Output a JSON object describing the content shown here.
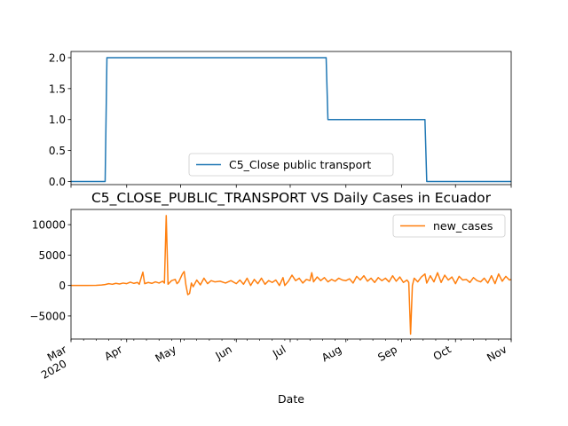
{
  "chart_data": [
    {
      "type": "line",
      "title": "",
      "xlabel": "",
      "ylabel": "",
      "ylim": [
        -0.05,
        2.1
      ],
      "yticks": [
        0.0,
        0.5,
        1.0,
        1.5,
        2.0
      ],
      "ytick_labels": [
        "0.0",
        "0.5",
        "1.0",
        "1.5",
        "2.0"
      ],
      "x_range": [
        "2020-03-01",
        "2020-11-01"
      ],
      "legend_position": "lower-center",
      "series": [
        {
          "name": "C5_Close public transport",
          "color": "#1f77b4",
          "step": true,
          "points": [
            [
              "2020-03-01",
              0
            ],
            [
              "2020-03-20",
              0
            ],
            [
              "2020-03-21",
              2
            ],
            [
              "2020-07-21",
              2
            ],
            [
              "2020-07-22",
              1
            ],
            [
              "2020-09-14",
              1
            ],
            [
              "2020-09-15",
              0
            ],
            [
              "2020-11-01",
              0
            ]
          ]
        }
      ]
    },
    {
      "type": "line",
      "title": "C5_CLOSE_PUBLIC_TRANSPORT VS Daily Cases in Ecuador",
      "xlabel": "Date",
      "ylabel": "",
      "ylim": [
        -8800,
        12500
      ],
      "yticks": [
        -5000,
        0,
        5000,
        10000
      ],
      "ytick_labels": [
        "−5000",
        "0",
        "5000",
        "10000"
      ],
      "x_range": [
        "2020-03-01",
        "2020-11-01"
      ],
      "xticks": [
        "2020-03-01",
        "2020-04-01",
        "2020-05-01",
        "2020-06-01",
        "2020-07-01",
        "2020-08-01",
        "2020-09-01",
        "2020-10-01",
        "2020-11-01"
      ],
      "xtick_labels": [
        "Mar",
        "Apr",
        "May",
        "Jun",
        "Jul",
        "Aug",
        "Sep",
        "Oct",
        "Nov"
      ],
      "xtick_year_label": "2020",
      "legend_position": "top-right",
      "series": [
        {
          "name": "new_cases",
          "color": "#ff7f0e",
          "points": [
            [
              "2020-03-01",
              0
            ],
            [
              "2020-03-10",
              0
            ],
            [
              "2020-03-15",
              20
            ],
            [
              "2020-03-18",
              80
            ],
            [
              "2020-03-20",
              150
            ],
            [
              "2020-03-22",
              300
            ],
            [
              "2020-03-24",
              200
            ],
            [
              "2020-03-26",
              350
            ],
            [
              "2020-03-28",
              250
            ],
            [
              "2020-03-30",
              400
            ],
            [
              "2020-04-01",
              300
            ],
            [
              "2020-04-03",
              550
            ],
            [
              "2020-04-05",
              350
            ],
            [
              "2020-04-07",
              500
            ],
            [
              "2020-04-08",
              200
            ],
            [
              "2020-04-10",
              2200
            ],
            [
              "2020-04-11",
              300
            ],
            [
              "2020-04-13",
              500
            ],
            [
              "2020-04-15",
              350
            ],
            [
              "2020-04-17",
              600
            ],
            [
              "2020-04-19",
              400
            ],
            [
              "2020-04-21",
              700
            ],
            [
              "2020-04-22",
              400
            ],
            [
              "2020-04-23",
              11500
            ],
            [
              "2020-04-24",
              200
            ],
            [
              "2020-04-26",
              800
            ],
            [
              "2020-04-28",
              1000
            ],
            [
              "2020-04-29",
              300
            ],
            [
              "2020-04-30",
              600
            ],
            [
              "2020-05-02",
              1900
            ],
            [
              "2020-05-03",
              2300
            ],
            [
              "2020-05-04",
              0
            ],
            [
              "2020-05-05",
              -1500
            ],
            [
              "2020-05-06",
              -1300
            ],
            [
              "2020-05-07",
              400
            ],
            [
              "2020-05-08",
              -200
            ],
            [
              "2020-05-10",
              900
            ],
            [
              "2020-05-12",
              100
            ],
            [
              "2020-05-14",
              1200
            ],
            [
              "2020-05-16",
              300
            ],
            [
              "2020-05-18",
              800
            ],
            [
              "2020-05-20",
              600
            ],
            [
              "2020-05-23",
              700
            ],
            [
              "2020-05-26",
              400
            ],
            [
              "2020-05-29",
              800
            ],
            [
              "2020-06-01",
              300
            ],
            [
              "2020-06-03",
              900
            ],
            [
              "2020-06-05",
              200
            ],
            [
              "2020-06-07",
              1200
            ],
            [
              "2020-06-09",
              0
            ],
            [
              "2020-06-11",
              1000
            ],
            [
              "2020-06-13",
              300
            ],
            [
              "2020-06-15",
              1200
            ],
            [
              "2020-06-17",
              200
            ],
            [
              "2020-06-19",
              800
            ],
            [
              "2020-06-21",
              500
            ],
            [
              "2020-06-23",
              900
            ],
            [
              "2020-06-25",
              0
            ],
            [
              "2020-06-27",
              1300
            ],
            [
              "2020-06-28",
              0
            ],
            [
              "2020-06-30",
              700
            ],
            [
              "2020-07-02",
              1700
            ],
            [
              "2020-07-04",
              800
            ],
            [
              "2020-07-06",
              1200
            ],
            [
              "2020-07-08",
              400
            ],
            [
              "2020-07-10",
              1000
            ],
            [
              "2020-07-12",
              800
            ],
            [
              "2020-07-13",
              2100
            ],
            [
              "2020-07-14",
              600
            ],
            [
              "2020-07-16",
              1400
            ],
            [
              "2020-07-18",
              800
            ],
            [
              "2020-07-20",
              1300
            ],
            [
              "2020-07-22",
              600
            ],
            [
              "2020-07-24",
              1000
            ],
            [
              "2020-07-26",
              700
            ],
            [
              "2020-07-28",
              1200
            ],
            [
              "2020-07-30",
              900
            ],
            [
              "2020-08-01",
              800
            ],
            [
              "2020-08-03",
              1100
            ],
            [
              "2020-08-05",
              400
            ],
            [
              "2020-08-07",
              1500
            ],
            [
              "2020-08-09",
              900
            ],
            [
              "2020-08-11",
              1600
            ],
            [
              "2020-08-13",
              700
            ],
            [
              "2020-08-15",
              1200
            ],
            [
              "2020-08-17",
              500
            ],
            [
              "2020-08-19",
              1300
            ],
            [
              "2020-08-21",
              800
            ],
            [
              "2020-08-23",
              1200
            ],
            [
              "2020-08-25",
              600
            ],
            [
              "2020-08-27",
              1600
            ],
            [
              "2020-08-29",
              700
            ],
            [
              "2020-08-31",
              1400
            ],
            [
              "2020-09-02",
              500
            ],
            [
              "2020-09-04",
              900
            ],
            [
              "2020-09-05",
              500
            ],
            [
              "2020-09-06",
              -8000
            ],
            [
              "2020-09-07",
              0
            ],
            [
              "2020-09-08",
              1200
            ],
            [
              "2020-09-10",
              600
            ],
            [
              "2020-09-12",
              1400
            ],
            [
              "2020-09-14",
              1900
            ],
            [
              "2020-09-15",
              400
            ],
            [
              "2020-09-17",
              1600
            ],
            [
              "2020-09-19",
              600
            ],
            [
              "2020-09-21",
              2100
            ],
            [
              "2020-09-23",
              500
            ],
            [
              "2020-09-25",
              1700
            ],
            [
              "2020-09-27",
              900
            ],
            [
              "2020-09-29",
              1400
            ],
            [
              "2020-10-01",
              300
            ],
            [
              "2020-10-03",
              1500
            ],
            [
              "2020-10-05",
              900
            ],
            [
              "2020-10-07",
              1000
            ],
            [
              "2020-10-09",
              500
            ],
            [
              "2020-10-11",
              1300
            ],
            [
              "2020-10-13",
              800
            ],
            [
              "2020-10-15",
              600
            ],
            [
              "2020-10-17",
              1200
            ],
            [
              "2020-10-19",
              400
            ],
            [
              "2020-10-21",
              1600
            ],
            [
              "2020-10-23",
              300
            ],
            [
              "2020-10-25",
              1900
            ],
            [
              "2020-10-27",
              700
            ],
            [
              "2020-10-29",
              1500
            ],
            [
              "2020-10-31",
              900
            ],
            [
              "2020-11-01",
              1000
            ]
          ]
        }
      ]
    }
  ]
}
